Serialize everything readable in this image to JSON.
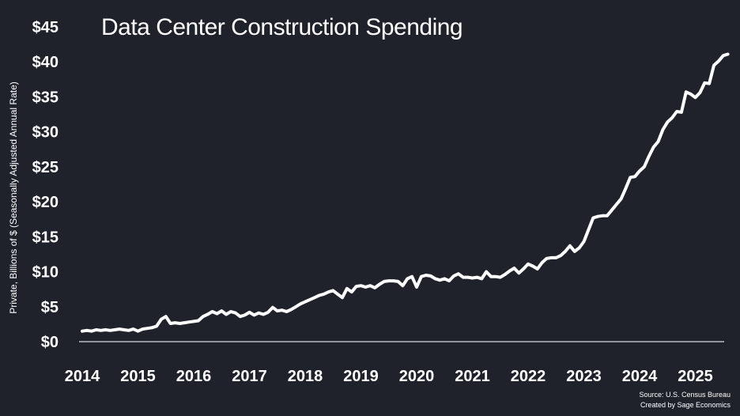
{
  "chart_data": {
    "type": "line",
    "title": "Data Center Construction Spending",
    "ylabel": "Private, Billions of $ (Seasonally Adjusted Annual Rate)",
    "xlabel": "",
    "x_start": "2014-01",
    "frequency": "monthly",
    "xlim": [
      "2014-01",
      "2025-08"
    ],
    "ylim": [
      0,
      45
    ],
    "yticks": [
      0,
      5,
      10,
      15,
      20,
      25,
      30,
      35,
      40,
      45
    ],
    "ytick_labels": [
      "$0",
      "$5",
      "$10",
      "$15",
      "$20",
      "$25",
      "$30",
      "$35",
      "$40",
      "$45"
    ],
    "xticks": [
      "2014-01",
      "2015-01",
      "2016-01",
      "2017-01",
      "2018-01",
      "2019-01",
      "2020-01",
      "2021-01",
      "2022-01",
      "2023-01",
      "2024-01",
      "2025-01"
    ],
    "xtick_labels": [
      "2014",
      "2015",
      "2016",
      "2017",
      "2018",
      "2019",
      "2020",
      "2021",
      "2022",
      "2023",
      "2024",
      "2025"
    ],
    "grid": false,
    "line_color": "#ffffff",
    "background": "#1f222b",
    "series": [
      {
        "values": [
          1.5,
          1.6,
          1.5,
          1.7,
          1.6,
          1.7,
          1.6,
          1.7,
          1.8,
          1.7,
          1.6,
          1.8,
          1.5,
          1.8,
          1.9,
          2.0,
          2.2,
          3.2,
          3.6,
          2.6,
          2.7,
          2.6,
          2.7,
          2.8,
          2.9,
          3.0,
          3.6,
          3.9,
          4.3,
          4.0,
          4.4,
          3.9,
          4.3,
          4.1,
          3.6,
          3.8,
          4.2,
          3.8,
          4.1,
          3.9,
          4.2,
          4.9,
          4.4,
          4.5,
          4.3,
          4.6,
          5.0,
          5.4,
          5.7,
          6.0,
          6.3,
          6.6,
          6.8,
          7.1,
          7.3,
          6.8,
          6.3,
          7.6,
          7.1,
          7.9,
          8.0,
          7.8,
          8.0,
          7.7,
          8.2,
          8.6,
          8.7,
          8.7,
          8.6,
          8.0,
          9.0,
          9.3,
          7.8,
          9.3,
          9.5,
          9.4,
          9.0,
          8.8,
          9.0,
          8.7,
          9.4,
          9.7,
          9.2,
          9.2,
          9.1,
          9.2,
          9.0,
          10.0,
          9.3,
          9.3,
          9.2,
          9.6,
          10.1,
          10.5,
          9.8,
          10.4,
          11.1,
          10.8,
          10.4,
          11.3,
          11.9,
          12.0,
          12.0,
          12.3,
          12.9,
          13.7,
          12.9,
          13.4,
          14.3,
          16.0,
          17.7,
          17.9,
          18.0,
          18.0,
          18.8,
          19.6,
          20.4,
          21.9,
          23.5,
          23.6,
          24.4,
          25.0,
          26.5,
          27.8,
          28.6,
          30.3,
          31.4,
          32.0,
          32.9,
          32.8,
          35.7,
          35.4,
          34.9,
          35.6,
          37.0,
          36.9,
          39.5,
          40.1,
          40.9,
          41.1
        ]
      }
    ]
  },
  "source": {
    "line1": "Source: U.S. Census Bureau",
    "line2": "Created by Sage Economics"
  }
}
